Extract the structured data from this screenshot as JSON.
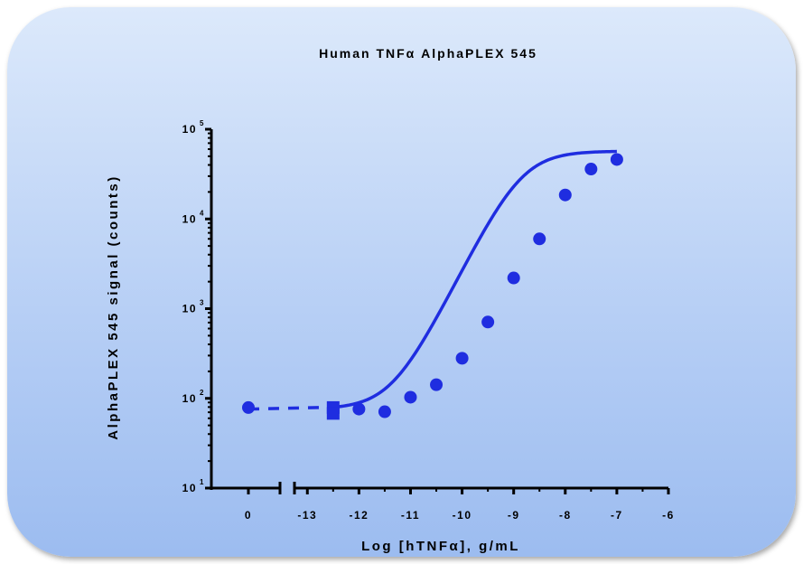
{
  "chart_data": {
    "type": "scatter",
    "title": "Human TNFα AlphaPLEX 545",
    "xlabel": "Log [hTNFα], g/mL",
    "ylabel": "AlphaPLEX 545 signal (counts)",
    "yscale": "log",
    "ylim": [
      10,
      100000
    ],
    "xlim_left_segment": [
      -0.5,
      0.5
    ],
    "xlim_right_segment": [
      -13.25,
      -6
    ],
    "x_axis_break": true,
    "grid": false,
    "x_tick_labels": [
      "0",
      "-13",
      "-12",
      "-11",
      "-10",
      "-9",
      "-8",
      "-7",
      "-6"
    ],
    "y_tick_labels": [
      {
        "base": "10",
        "exp": "1",
        "value": 10
      },
      {
        "base": "10",
        "exp": "2",
        "value": 100
      },
      {
        "base": "10",
        "exp": "3",
        "value": 1000
      },
      {
        "base": "10",
        "exp": "4",
        "value": 10000
      },
      {
        "base": "10",
        "exp": "5",
        "value": 100000
      }
    ],
    "series": [
      {
        "marker": "circle",
        "color": "#1f2de0",
        "points": [
          {
            "x": 0,
            "y": 79
          },
          {
            "x": -12,
            "y": 76
          },
          {
            "x": -11.5,
            "y": 71
          },
          {
            "x": -11,
            "y": 103
          },
          {
            "x": -10.5,
            "y": 142
          },
          {
            "x": -10,
            "y": 280
          },
          {
            "x": -9.5,
            "y": 710
          },
          {
            "x": -9,
            "y": 2200
          },
          {
            "x": -8.5,
            "y": 6000
          },
          {
            "x": -8,
            "y": 18500
          },
          {
            "x": -7.5,
            "y": 36000
          },
          {
            "x": -7,
            "y": 46000
          }
        ]
      },
      {
        "marker": "square",
        "color": "#1f2de0",
        "points": [
          {
            "x": -12.5,
            "y": 79
          },
          {
            "x": -12.5,
            "y": 68
          }
        ]
      }
    ],
    "fit_curve": {
      "type": "sigmoid",
      "bottom": 76,
      "top": 57000,
      "log_ec50": -8.85,
      "hill_slope": 1.15,
      "x_range": [
        -12.5,
        -7
      ],
      "baseline_dashed_from": 0,
      "color": "#1f2de0"
    }
  }
}
